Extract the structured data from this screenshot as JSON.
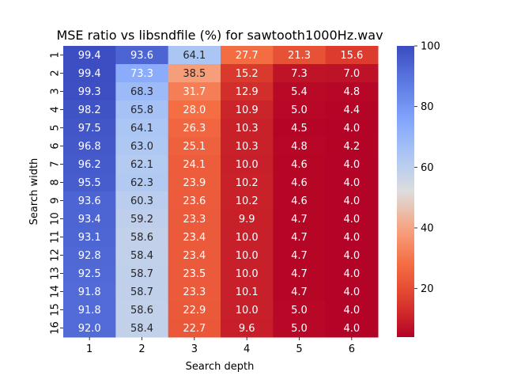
{
  "chart_data": {
    "type": "heatmap",
    "title": "MSE ratio vs libsndfile (%) for sawtooth1000Hz.wav",
    "xlabel": "Search depth",
    "ylabel": "Search width",
    "x_categories": [
      "1",
      "2",
      "3",
      "4",
      "5",
      "6"
    ],
    "y_categories": [
      "1",
      "2",
      "3",
      "4",
      "5",
      "6",
      "7",
      "8",
      "9",
      "10",
      "11",
      "12",
      "13",
      "14",
      "15",
      "16"
    ],
    "values": [
      [
        99.4,
        93.6,
        64.1,
        27.7,
        21.3,
        15.6
      ],
      [
        99.4,
        73.3,
        38.5,
        15.2,
        7.3,
        7.0
      ],
      [
        99.3,
        68.3,
        31.7,
        12.9,
        5.4,
        4.8
      ],
      [
        98.2,
        65.8,
        28.0,
        10.9,
        5.0,
        4.4
      ],
      [
        97.5,
        64.1,
        26.3,
        10.3,
        4.5,
        4.0
      ],
      [
        96.8,
        63.0,
        25.1,
        10.3,
        4.8,
        4.2
      ],
      [
        96.2,
        62.1,
        24.1,
        10.0,
        4.6,
        4.0
      ],
      [
        95.5,
        62.3,
        23.9,
        10.2,
        4.6,
        4.0
      ],
      [
        93.6,
        60.3,
        23.6,
        10.2,
        4.6,
        4.0
      ],
      [
        93.4,
        59.2,
        23.3,
        9.9,
        4.7,
        4.0
      ],
      [
        93.1,
        58.6,
        23.4,
        10.0,
        4.7,
        4.0
      ],
      [
        92.8,
        58.4,
        23.4,
        10.0,
        4.7,
        4.0
      ],
      [
        92.5,
        58.7,
        23.5,
        10.0,
        4.7,
        4.0
      ],
      [
        91.8,
        58.7,
        23.3,
        10.1,
        4.7,
        4.0
      ],
      [
        91.8,
        58.6,
        22.9,
        10.0,
        5.0,
        4.0
      ],
      [
        92.0,
        58.4,
        22.7,
        9.6,
        5.0,
        4.0
      ]
    ],
    "colorbar": {
      "min": 4.0,
      "max": 100,
      "ticks": [
        20,
        40,
        60,
        80,
        100
      ],
      "colormap": "coolwarm_r"
    },
    "annotation_format": "0.1f",
    "grid": false
  }
}
